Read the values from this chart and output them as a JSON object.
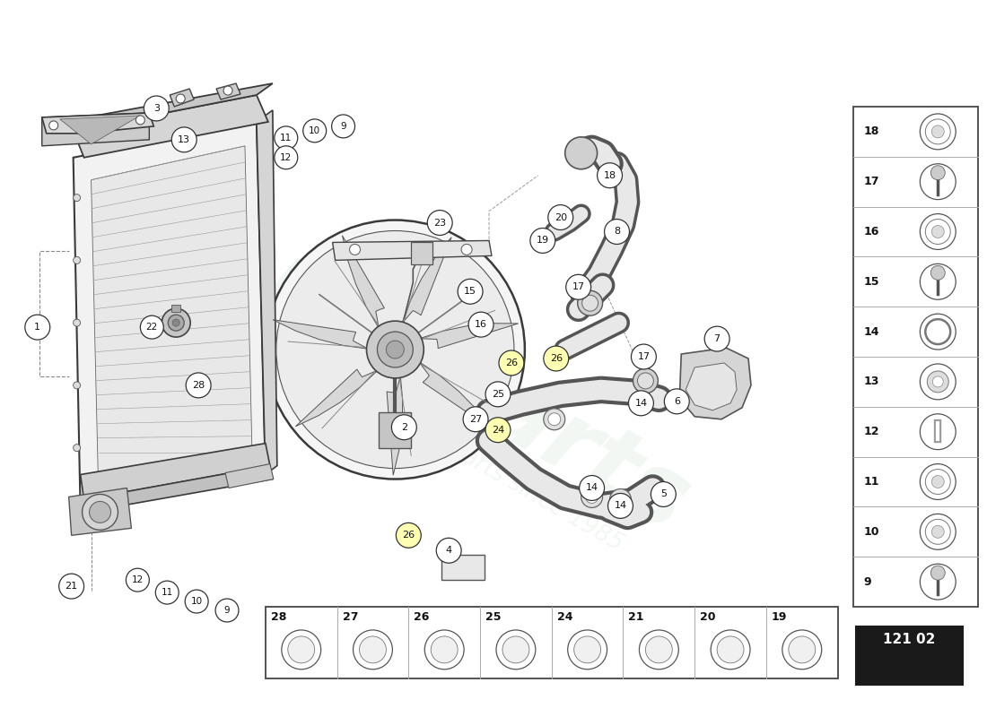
{
  "bg_color": "#ffffff",
  "watermark_text": "europarts",
  "watermark_sub": "a passion for parts since 1985",
  "part_number": "121 02",
  "right_panel": [
    {
      "num": 18,
      "row": 0
    },
    {
      "num": 17,
      "row": 1
    },
    {
      "num": 16,
      "row": 2
    },
    {
      "num": 15,
      "row": 3
    },
    {
      "num": 14,
      "row": 4
    },
    {
      "num": 13,
      "row": 5
    },
    {
      "num": 12,
      "row": 6
    },
    {
      "num": 11,
      "row": 7
    },
    {
      "num": 10,
      "row": 8
    },
    {
      "num": 9,
      "row": 9
    }
  ],
  "bottom_panel": [
    {
      "num": 28
    },
    {
      "num": 27
    },
    {
      "num": 26
    },
    {
      "num": 25
    },
    {
      "num": 24
    },
    {
      "num": 21
    },
    {
      "num": 20
    },
    {
      "num": 19
    }
  ]
}
